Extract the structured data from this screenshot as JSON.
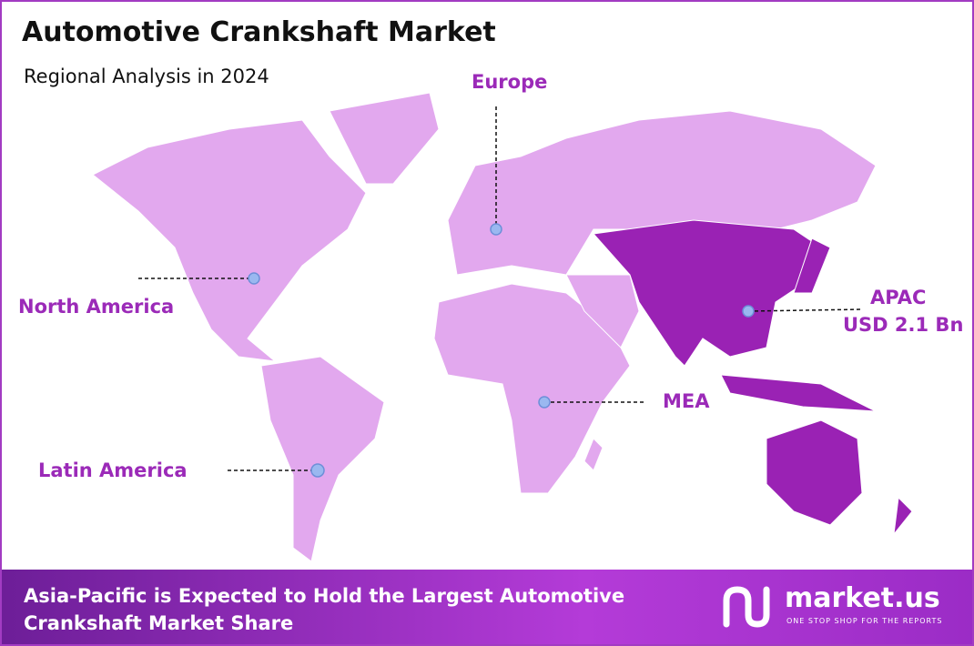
{
  "header": {
    "title": "Automotive Crankshaft Market",
    "subtitle": "Regional Analysis in 2024"
  },
  "regions": [
    {
      "name": "Europe"
    },
    {
      "name": "North America"
    },
    {
      "name": "APAC",
      "value": "USD 2.1 Bn"
    },
    {
      "name": "MEA"
    },
    {
      "name": "Latin America"
    }
  ],
  "footer": {
    "text": "Asia-Pacific is Expected to Hold the Largest Automotive Crankshaft Market Share",
    "brand": "market.us",
    "tagline": "ONE STOP SHOP FOR THE REPORTS"
  }
}
